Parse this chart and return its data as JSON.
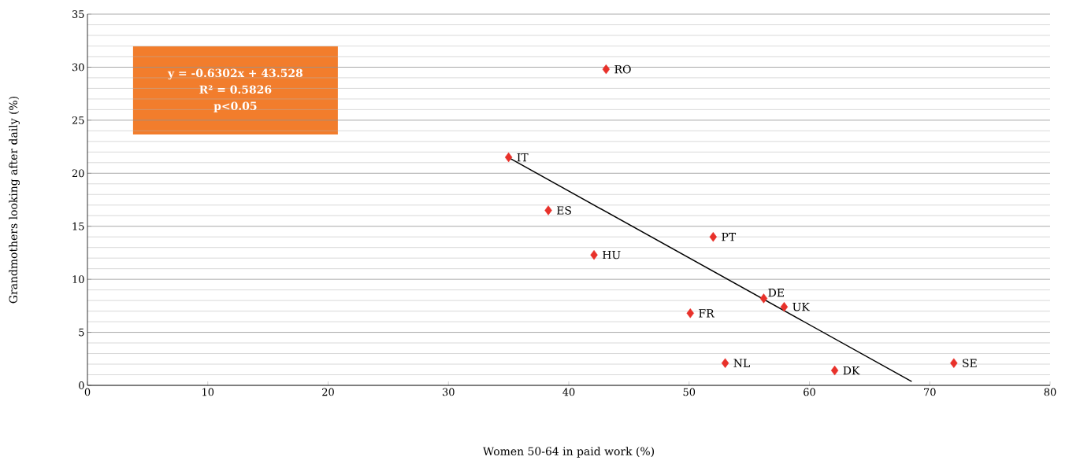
{
  "chart_data": {
    "type": "scatter",
    "xlabel": "Women 50-64 in paid work (%)",
    "ylabel": "Grandmothers looking after daily (%)",
    "xlim": [
      0,
      80
    ],
    "ylim": [
      0,
      35
    ],
    "xticks": [
      0,
      10,
      20,
      30,
      40,
      50,
      60,
      70,
      80
    ],
    "yticks": [
      0,
      5,
      10,
      15,
      20,
      25,
      30,
      35
    ],
    "grid": "y",
    "series": [
      {
        "marker": "diamond",
        "color": "#e8312a",
        "x": [
          43.1,
          35.0,
          38.3,
          42.1,
          52.0,
          56.2,
          57.9,
          50.1,
          53.0,
          62.1,
          72.0
        ],
        "values": [
          29.8,
          21.5,
          16.5,
          12.3,
          14.0,
          8.2,
          7.4,
          6.8,
          2.1,
          1.4,
          2.1
        ]
      },
      {
        "type": "line",
        "marker": "none",
        "line_style": "solid",
        "color": "#000000",
        "x": [
          35,
          68.5
        ],
        "values": [
          21.47,
          0.36
        ]
      }
    ],
    "annotations": [
      {
        "text": "RO",
        "x": 43.1,
        "y": 29.8
      },
      {
        "text": "IT",
        "x": 35.0,
        "y": 21.5
      },
      {
        "text": "ES",
        "x": 38.3,
        "y": 16.5
      },
      {
        "text": "HU",
        "x": 42.1,
        "y": 12.3
      },
      {
        "text": "PT",
        "x": 52.0,
        "y": 14.0
      },
      {
        "text": "DE",
        "x": 56.2,
        "y": 8.2
      },
      {
        "text": "UK",
        "x": 57.9,
        "y": 7.4
      },
      {
        "text": "FR",
        "x": 50.1,
        "y": 6.8
      },
      {
        "text": "NL",
        "x": 53.0,
        "y": 2.1
      },
      {
        "text": "DK",
        "x": 62.1,
        "y": 1.4
      },
      {
        "text": "SE",
        "x": 72.0,
        "y": 2.1
      },
      "y = -0.6302x + 43.528",
      "R² = 0.5826",
      "p<0.05"
    ]
  }
}
